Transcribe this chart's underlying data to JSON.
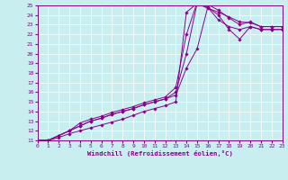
{
  "xlabel": "Windchill (Refroidissement éolien,°C)",
  "bg_color": "#c8eef0",
  "line_color": "#8b008b",
  "grid_color": "#ffffff",
  "xlim": [
    0,
    23
  ],
  "ylim": [
    11,
    25
  ],
  "xticks": [
    0,
    1,
    2,
    3,
    4,
    5,
    6,
    7,
    8,
    9,
    10,
    11,
    12,
    13,
    14,
    15,
    16,
    17,
    18,
    19,
    20,
    21,
    22,
    23
  ],
  "yticks": [
    11,
    12,
    13,
    14,
    15,
    16,
    17,
    18,
    19,
    20,
    21,
    22,
    23,
    24,
    25
  ],
  "lines": [
    {
      "x": [
        0,
        1,
        2,
        3,
        4,
        5,
        6,
        7,
        8,
        9,
        10,
        11,
        12,
        13,
        14,
        15,
        16,
        17,
        18,
        19,
        20,
        21,
        22,
        23
      ],
      "y": [
        11,
        11.0,
        11.3,
        11.7,
        12.0,
        12.3,
        12.6,
        12.9,
        13.2,
        13.6,
        14.0,
        14.3,
        14.6,
        15.0,
        24.3,
        25.2,
        24.8,
        24.0,
        22.5,
        21.5,
        22.8,
        22.5,
        22.5,
        22.5
      ]
    },
    {
      "x": [
        0,
        1,
        2,
        3,
        4,
        5,
        6,
        7,
        8,
        9,
        10,
        11,
        12,
        13,
        14,
        15,
        16,
        17,
        18,
        19,
        20,
        21,
        22,
        23
      ],
      "y": [
        11,
        11.0,
        11.5,
        12.0,
        12.5,
        13.0,
        13.3,
        13.7,
        14.0,
        14.3,
        14.7,
        15.0,
        15.3,
        15.7,
        18.5,
        20.5,
        24.8,
        23.5,
        22.8,
        22.5,
        22.8,
        22.5,
        22.5,
        22.5
      ]
    },
    {
      "x": [
        0,
        1,
        2,
        3,
        4,
        5,
        6,
        7,
        8,
        9,
        10,
        11,
        12,
        13,
        14,
        15,
        16,
        17,
        18,
        19,
        20,
        21,
        22,
        23
      ],
      "y": [
        11,
        11.0,
        11.5,
        12.0,
        12.5,
        13.0,
        13.3,
        13.7,
        14.0,
        14.3,
        14.7,
        15.0,
        15.3,
        16.0,
        20.0,
        25.2,
        24.7,
        24.3,
        23.8,
        23.3,
        23.2,
        22.8,
        22.8,
        22.8
      ]
    },
    {
      "x": [
        0,
        1,
        2,
        3,
        4,
        5,
        6,
        7,
        8,
        9,
        10,
        11,
        12,
        13,
        14,
        15,
        16,
        17,
        18,
        19,
        20,
        21,
        22,
        23
      ],
      "y": [
        11,
        11.0,
        11.5,
        12.0,
        12.8,
        13.2,
        13.5,
        13.9,
        14.2,
        14.5,
        14.9,
        15.2,
        15.5,
        16.5,
        22.0,
        25.3,
        25.1,
        24.5,
        23.7,
        23.0,
        23.3,
        22.8,
        22.8,
        22.8
      ]
    }
  ]
}
